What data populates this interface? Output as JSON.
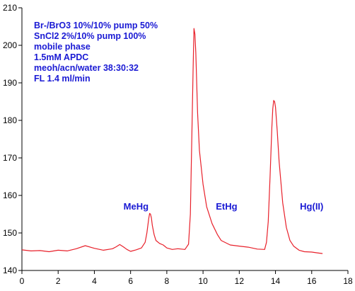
{
  "chart_data": {
    "type": "line",
    "title": "",
    "xlabel": "",
    "ylabel": "",
    "xlim": [
      0,
      18
    ],
    "ylim": [
      140,
      210
    ],
    "x_ticks": [
      0,
      2,
      4,
      6,
      8,
      10,
      12,
      14,
      16,
      18
    ],
    "y_ticks": [
      140,
      150,
      160,
      170,
      180,
      190,
      200,
      210
    ],
    "grid": false,
    "legend": "none",
    "colors": {
      "series": "#e8202a",
      "annotation": "#1a1ad4",
      "axis": "#000000"
    },
    "annotations": [
      "Br-/BrO3 10%/10% pump 50%",
      "SnCl2 2%/10% pump 100%",
      "mobile phase",
      "1.5mM APDC",
      "meoh/acn/water 38:30:32",
      "FL 1.4 ml/min"
    ],
    "peak_labels": [
      {
        "text": "MeHg",
        "x": 6.3,
        "y": 157
      },
      {
        "text": "EtHg",
        "x": 11.3,
        "y": 157
      },
      {
        "text": "Hg(II)",
        "x": 16.0,
        "y": 157
      }
    ],
    "series": [
      {
        "x": [
          0.0,
          0.5,
          1.0,
          1.5,
          2.0,
          2.5,
          3.0,
          3.5,
          4.0,
          4.5,
          5.0,
          5.2,
          5.4,
          5.6,
          5.8,
          6.0,
          6.3,
          6.6,
          6.8,
          6.9,
          7.0,
          7.05,
          7.1,
          7.15,
          7.2,
          7.3,
          7.4,
          7.6,
          7.8,
          8.0,
          8.3,
          8.6,
          9.0,
          9.2,
          9.3,
          9.4,
          9.45,
          9.5,
          9.55,
          9.6,
          9.7,
          9.8,
          10.0,
          10.2,
          10.5,
          10.8,
          11.0,
          11.5,
          12.0,
          12.5,
          13.0,
          13.4,
          13.5,
          13.6,
          13.7,
          13.8,
          13.85,
          13.9,
          13.95,
          14.0,
          14.1,
          14.2,
          14.4,
          14.6,
          14.8,
          15.0,
          15.3,
          15.6,
          16.0,
          16.3,
          16.6
        ],
        "y": [
          145.5,
          145.2,
          145.3,
          145.0,
          145.4,
          145.2,
          145.8,
          146.6,
          145.9,
          145.4,
          145.8,
          146.3,
          146.9,
          146.3,
          145.6,
          145.1,
          145.5,
          146.0,
          147.5,
          150.0,
          153.8,
          155.2,
          155.0,
          154.0,
          152.0,
          149.5,
          148.0,
          147.2,
          146.8,
          146.0,
          145.6,
          145.8,
          145.6,
          147.0,
          155.0,
          180.0,
          193.0,
          204.5,
          203.0,
          198.0,
          182.0,
          172.0,
          163.0,
          157.0,
          152.5,
          149.5,
          148.0,
          146.8,
          146.5,
          146.2,
          145.7,
          145.6,
          147.5,
          153.0,
          165.0,
          178.0,
          183.0,
          185.3,
          185.0,
          183.5,
          177.0,
          169.0,
          158.0,
          151.5,
          148.0,
          146.5,
          145.4,
          145.0,
          144.9,
          144.7,
          144.5
        ]
      }
    ]
  }
}
